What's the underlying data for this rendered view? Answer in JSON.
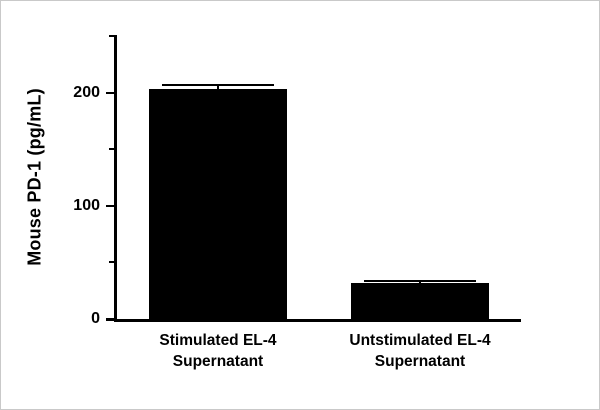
{
  "figure": {
    "background": "#ffffff",
    "border_color": "#c9c9c9"
  },
  "chart_data": {
    "type": "bar",
    "title": "",
    "xlabel": "",
    "ylabel": "Mouse PD-1 (pg/mL)",
    "categories": [
      "Stimulated EL-4\nSupernatant",
      "Untstimulated EL-4\nSupernatant"
    ],
    "values": [
      203,
      32
    ],
    "errors": [
      4,
      2
    ],
    "ylim": [
      0,
      250
    ],
    "yticks_major": [
      0,
      100,
      200
    ],
    "yticks_minor": [
      50,
      150,
      250
    ],
    "bar_color": "#000000",
    "axis_color": "#000000",
    "grid": false,
    "legend": null
  }
}
